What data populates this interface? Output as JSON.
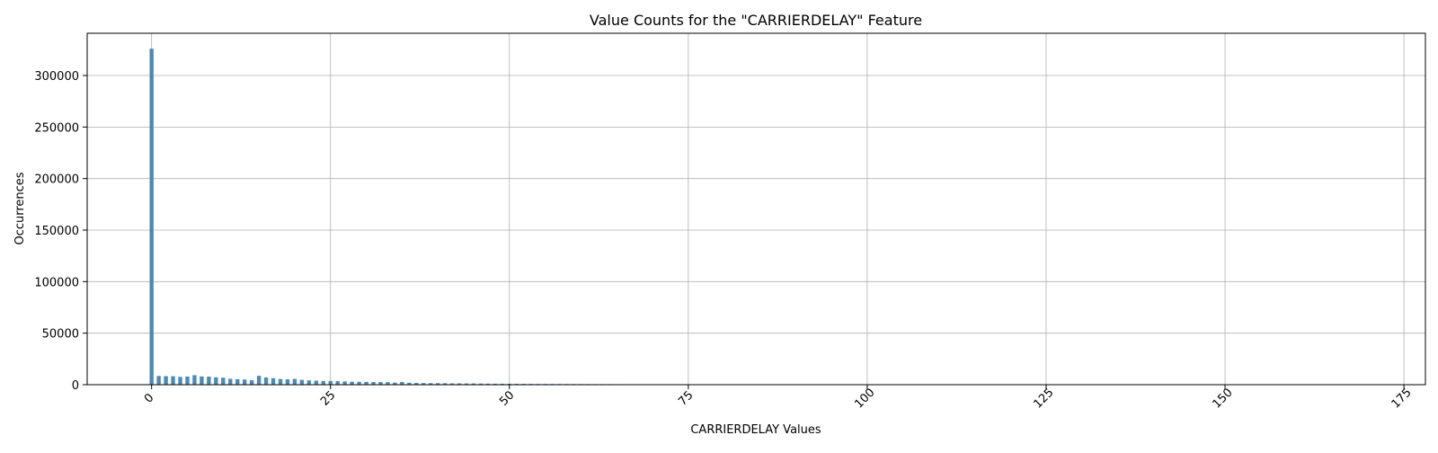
{
  "chart_data": {
    "type": "bar",
    "title": "Value Counts for the \"CARRIERDELAY\" Feature",
    "xlabel": "CARRIERDELAY Values",
    "ylabel": "Occurrences",
    "xlim": [
      -9,
      178
    ],
    "ylim": [
      0,
      341000
    ],
    "xticks": [
      0,
      25,
      50,
      75,
      100,
      125,
      150,
      175
    ],
    "yticks": [
      0,
      50000,
      100000,
      150000,
      200000,
      250000,
      300000
    ],
    "grid": true,
    "bar_color": "#4a8ab5",
    "x": [
      0,
      1,
      2,
      3,
      4,
      5,
      6,
      7,
      8,
      9,
      10,
      11,
      12,
      13,
      14,
      15,
      16,
      17,
      18,
      19,
      20,
      21,
      22,
      23,
      24,
      25,
      26,
      27,
      28,
      29,
      30,
      31,
      32,
      33,
      34,
      35,
      36,
      37,
      38,
      39,
      40,
      41,
      42,
      43,
      44,
      45,
      46,
      47,
      48,
      49,
      50,
      51,
      52,
      53,
      54,
      55,
      56,
      57,
      58,
      59,
      60,
      61,
      62,
      63,
      64,
      65,
      66,
      67,
      68,
      69,
      70,
      71,
      72,
      73,
      74,
      75,
      76,
      77,
      78,
      79,
      80
    ],
    "values": [
      326000,
      8500,
      8300,
      8200,
      7600,
      7900,
      9200,
      8000,
      7800,
      7200,
      6800,
      5700,
      5300,
      5000,
      4300,
      8600,
      7000,
      6300,
      5500,
      5200,
      5600,
      4700,
      4200,
      3900,
      3600,
      3600,
      3400,
      3200,
      2900,
      2800,
      2700,
      2600,
      2500,
      2400,
      2000,
      2600,
      1900,
      1700,
      1600,
      1500,
      1500,
      1400,
      1300,
      1300,
      1200,
      1200,
      1100,
      1000,
      950,
      900,
      860,
      820,
      780,
      740,
      700,
      680,
      650,
      620,
      600,
      580,
      560,
      540,
      520,
      500,
      480,
      460,
      440,
      420,
      400,
      380,
      360,
      340,
      320,
      300,
      280,
      260,
      240,
      220,
      200,
      190,
      180
    ]
  }
}
